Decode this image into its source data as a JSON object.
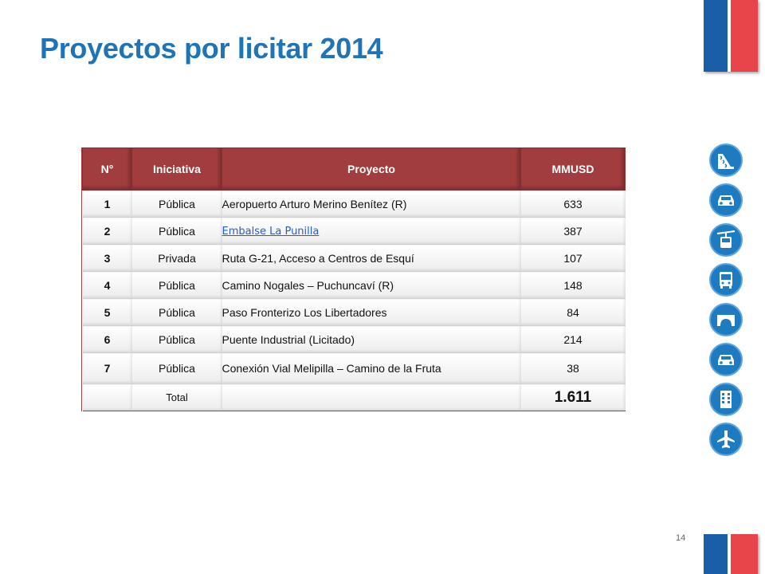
{
  "slide": {
    "title": "Proyectos por licitar 2014",
    "page_number": "14"
  },
  "table": {
    "headers": {
      "num": "N°",
      "iniciativa": "Iniciativa",
      "proyecto": "Proyecto",
      "mmusd": "MMUSD"
    },
    "rows": [
      {
        "num": "1",
        "iniciativa": "Pública",
        "proyecto": "Aeropuerto Arturo Merino Benítez (R)",
        "mmusd": "633",
        "link": false
      },
      {
        "num": "2",
        "iniciativa": "Pública",
        "proyecto": "Embalse La Punilla",
        "mmusd": "387",
        "link": true
      },
      {
        "num": "3",
        "iniciativa": "Privada",
        "proyecto": "Ruta G-21, Acceso a Centros de Esquí",
        "mmusd": "107",
        "link": false
      },
      {
        "num": "4",
        "iniciativa": "Pública",
        "proyecto": "Camino Nogales – Puchuncaví (R)",
        "mmusd": "148",
        "link": false
      },
      {
        "num": "5",
        "iniciativa": "Pública",
        "proyecto": "Paso Fronterizo Los Libertadores",
        "mmusd": "84",
        "link": false
      },
      {
        "num": "6",
        "iniciativa": "Pública",
        "proyecto": "Puente Industrial (Licitado)",
        "mmusd": "214",
        "link": false
      },
      {
        "num": "7",
        "iniciativa": "Pública",
        "proyecto": "Conexión Vial Melipilla – Camino de la Fruta",
        "mmusd": "38",
        "link": false
      }
    ],
    "total": {
      "label": "Total",
      "value": "1.611"
    }
  },
  "icons": [
    "water-dam-icon",
    "car-icon",
    "cable-car-icon",
    "bus-icon",
    "bridge-icon",
    "car-icon",
    "building-icon",
    "airplane-icon"
  ],
  "colors": {
    "title": "#1f73b7",
    "header_bg": "#a23d3f",
    "link": "#1f5fd1",
    "icon_bg": "#1f7bc0",
    "flag_blue": "#1a5ea8",
    "flag_red": "#e8454a"
  }
}
